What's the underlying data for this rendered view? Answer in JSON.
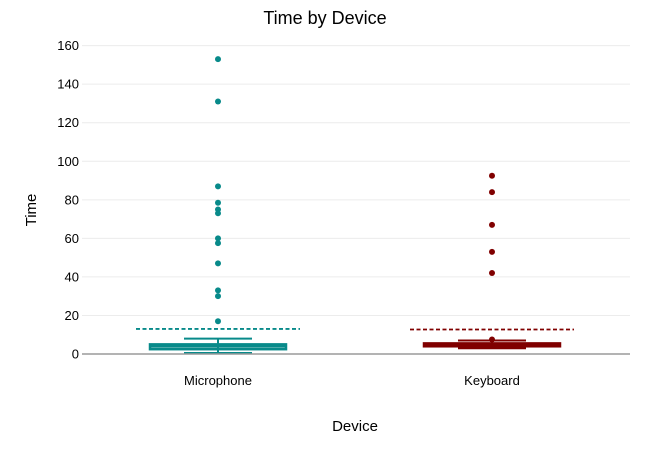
{
  "chart_data": {
    "type": "box",
    "title": "Time by Device",
    "xlabel": "Device",
    "ylabel": "Time",
    "ylim": [
      0,
      165
    ],
    "yticks": [
      0,
      20,
      40,
      60,
      80,
      100,
      120,
      140,
      160
    ],
    "grid": true,
    "categories": [
      "Microphone",
      "Keyboard"
    ],
    "series": [
      {
        "name": "Microphone",
        "color": "#088a8a",
        "whisker_low": 0.5,
        "q1": 2.5,
        "median": 4,
        "q3": 5,
        "whisker_high": 8,
        "mean": 13,
        "outliers": [
          153,
          131,
          87,
          78.5,
          75,
          73,
          60,
          57.5,
          47,
          33,
          30,
          17
        ]
      },
      {
        "name": "Keyboard",
        "color": "#800000",
        "whisker_low": 3,
        "q1": 4,
        "median": 5,
        "q3": 5.5,
        "whisker_high": 7,
        "mean": 12.7,
        "outliers": [
          92.5,
          84,
          67,
          53,
          42,
          7.5
        ]
      }
    ]
  }
}
